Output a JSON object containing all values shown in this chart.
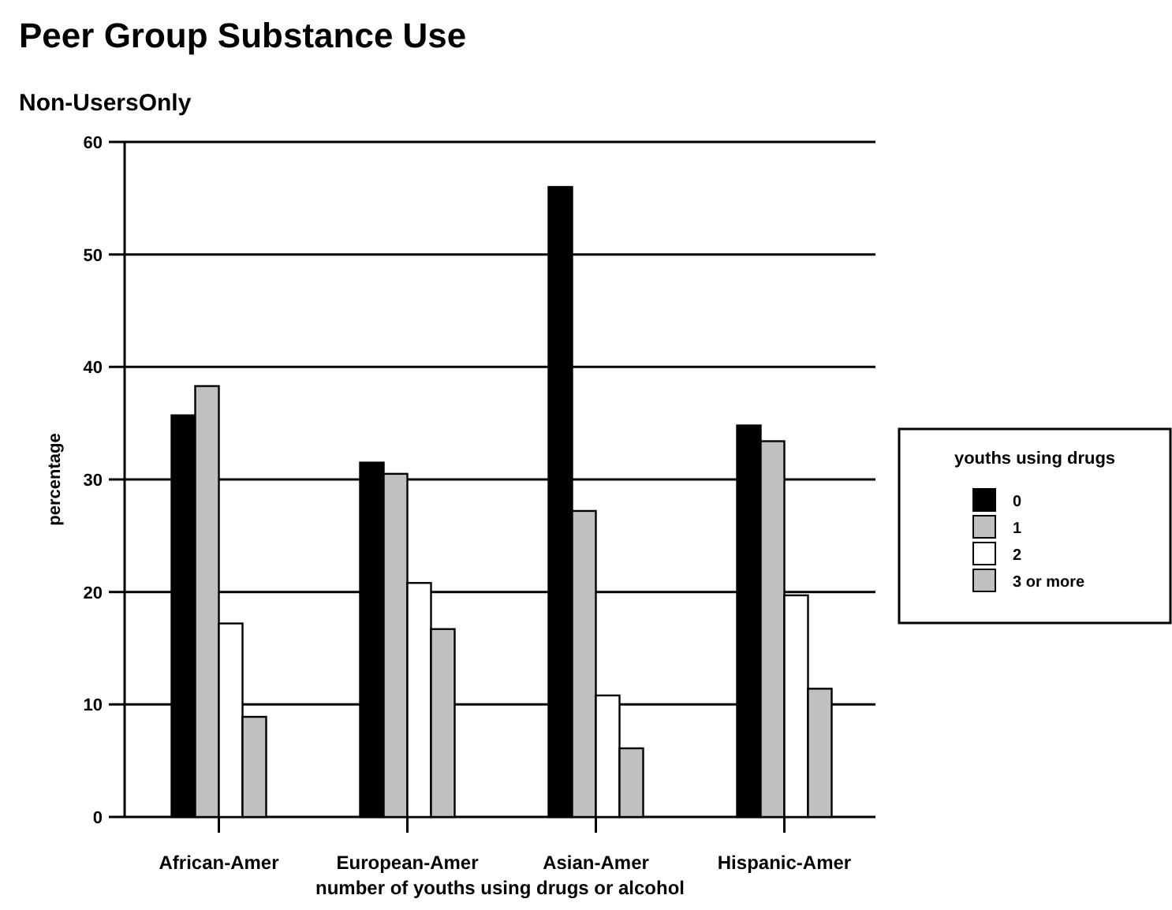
{
  "chart_data": {
    "type": "bar",
    "title": "Peer Group Substance Use",
    "subtitle": "Non-UsersOnly",
    "xlabel": "number of youths using drugs or alcohol",
    "ylabel": "percentage",
    "legend_title": "youths using drugs",
    "categories": [
      "African-Amer",
      "European-Amer",
      "Asian-Amer",
      "Hispanic-Amer"
    ],
    "series": [
      {
        "name": "0",
        "color": "#000000",
        "values": [
          35.7,
          31.5,
          56.0,
          34.8
        ]
      },
      {
        "name": "1",
        "color": "#c0c0c0",
        "values": [
          38.3,
          30.5,
          27.2,
          33.4
        ]
      },
      {
        "name": "2",
        "color": "#ffffff",
        "values": [
          17.2,
          20.8,
          10.8,
          19.7
        ]
      },
      {
        "name": "3 or more",
        "color": "#c0c0c0",
        "values": [
          8.9,
          16.7,
          6.1,
          11.4
        ]
      }
    ],
    "ylim": [
      0,
      60
    ],
    "yticks": [
      0,
      10,
      20,
      30,
      40,
      50,
      60
    ],
    "grid": "y",
    "legend": "right"
  }
}
